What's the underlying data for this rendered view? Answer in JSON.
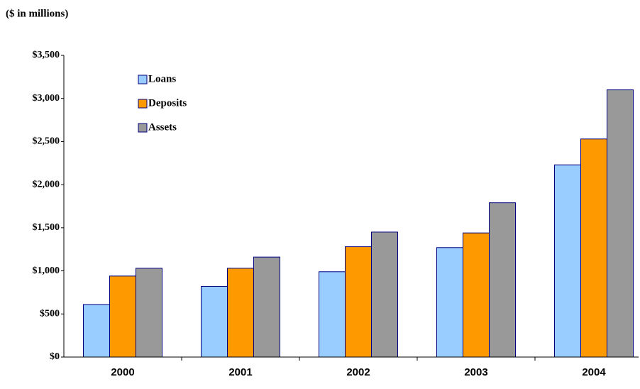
{
  "chart_data": {
    "type": "bar",
    "subtitle": "($ in millions)",
    "categories": [
      "2000",
      "2001",
      "2002",
      "2003",
      "2004"
    ],
    "series": [
      {
        "name": "Loans",
        "color": "#99ccff",
        "values": [
          610,
          820,
          990,
          1270,
          2230
        ]
      },
      {
        "name": "Deposits",
        "color": "#ff9900",
        "values": [
          940,
          1030,
          1280,
          1440,
          2530
        ]
      },
      {
        "name": "Assets",
        "color": "#999999",
        "values": [
          1030,
          1160,
          1450,
          1790,
          3100
        ]
      }
    ],
    "ylim": [
      0,
      3500
    ],
    "yticks": [
      {
        "value": 0,
        "label": "$0"
      },
      {
        "value": 500,
        "label": "$500"
      },
      {
        "value": 1000,
        "label": "$1,000"
      },
      {
        "value": 1500,
        "label": "$1,500"
      },
      {
        "value": 2000,
        "label": "$2,000"
      },
      {
        "value": 2500,
        "label": "$2,500"
      },
      {
        "value": 3000,
        "label": "$3,000"
      },
      {
        "value": 3500,
        "label": "$3,500"
      }
    ],
    "grid": false,
    "legend": "top-left"
  }
}
